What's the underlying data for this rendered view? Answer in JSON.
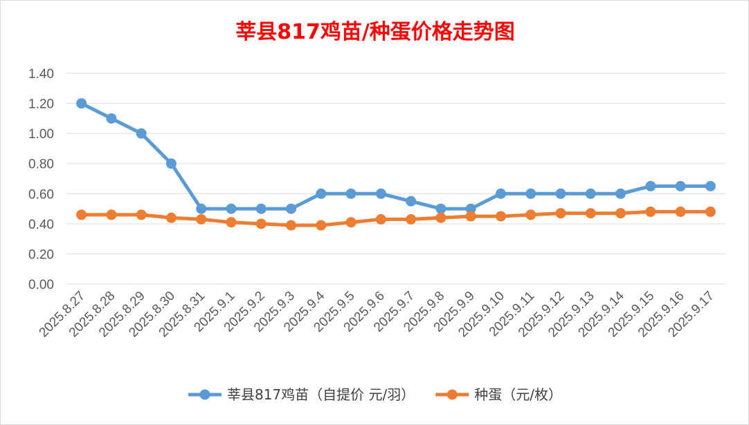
{
  "chart_data": {
    "type": "line",
    "title": "莘县817鸡苗/种蛋价格走势图",
    "title_color": "#ff0000",
    "xlabel": "",
    "ylabel": "",
    "ylim": [
      0,
      1.4
    ],
    "yticks": [
      "0.00",
      "0.20",
      "0.40",
      "0.60",
      "0.80",
      "1.00",
      "1.20",
      "1.40"
    ],
    "grid": true,
    "legend_position": "bottom",
    "categories": [
      "2025.8.27",
      "2025.8.28",
      "2025.8.29",
      "2025.8.30",
      "2025.8.31",
      "2025.9.1",
      "2025.9.2",
      "2025.9.3",
      "2025.9.4",
      "2025.9.5",
      "2025.9.6",
      "2025.9.7",
      "2025.9.8",
      "2025.9.9",
      "2025.9.10",
      "2025.9.11",
      "2025.9.12",
      "2025.9.13",
      "2025.9.14",
      "2025.9.15",
      "2025.9.16",
      "2025.9.17"
    ],
    "series": [
      {
        "name": "莘县817鸡苗（自提价 元/羽）",
        "color": "#5b9bd5",
        "values": [
          1.2,
          1.1,
          1.0,
          0.8,
          0.5,
          0.5,
          0.5,
          0.5,
          0.6,
          0.6,
          0.6,
          0.55,
          0.5,
          0.5,
          0.6,
          0.6,
          0.6,
          0.6,
          0.6,
          0.65,
          0.65,
          0.65
        ]
      },
      {
        "name": "种蛋（元/枚）",
        "color": "#ed7d31",
        "values": [
          0.46,
          0.46,
          0.46,
          0.44,
          0.43,
          0.41,
          0.4,
          0.39,
          0.39,
          0.41,
          0.43,
          0.43,
          0.44,
          0.45,
          0.45,
          0.46,
          0.47,
          0.47,
          0.47,
          0.48,
          0.48,
          0.48
        ]
      }
    ]
  }
}
